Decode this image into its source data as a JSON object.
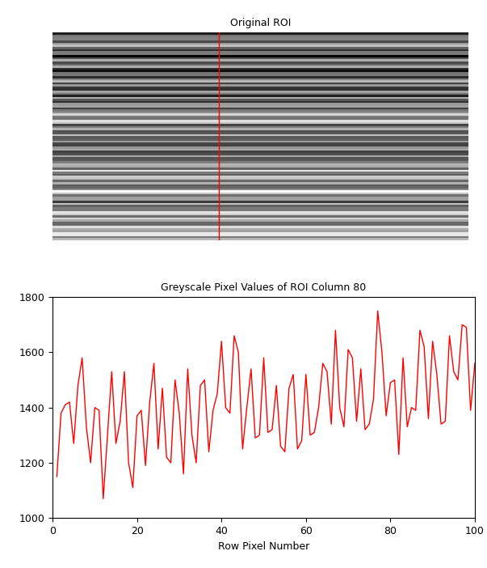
{
  "chart_data": [
    {
      "type": "image",
      "title": "Original ROI",
      "width": 200,
      "line_column": 80,
      "line_color": "#ff0000",
      "tick_labels": false
    },
    {
      "type": "line",
      "title": "Greyscale Pixel Values of ROI Column 80",
      "x_label": "Row Pixel Number",
      "x": [
        1,
        2,
        3,
        4,
        5,
        6,
        7,
        8,
        9,
        10,
        11,
        12,
        13,
        14,
        15,
        16,
        17,
        18,
        19,
        20,
        21,
        22,
        23,
        24,
        25,
        26,
        27,
        28,
        29,
        30,
        31,
        32,
        33,
        34,
        35,
        36,
        37,
        38,
        39,
        40,
        41,
        42,
        43,
        44,
        45,
        46,
        47,
        48,
        49,
        50,
        51,
        52,
        53,
        54,
        55,
        56,
        57,
        58,
        59,
        60,
        61,
        62,
        63,
        64,
        65,
        66,
        67,
        68,
        69,
        70,
        71,
        72,
        73,
        74,
        75,
        76,
        77,
        78,
        79,
        80,
        81,
        82,
        83,
        84,
        85,
        86,
        87,
        88,
        89,
        90,
        91,
        92,
        93,
        94,
        95,
        96,
        97,
        98,
        99,
        100
      ],
      "series": [
        {
          "color": "#ff0000",
          "values": [
            1150,
            1380,
            1410,
            1420,
            1270,
            1480,
            1580,
            1330,
            1200,
            1400,
            1390,
            1070,
            1300,
            1530,
            1270,
            1350,
            1530,
            1200,
            1110,
            1370,
            1390,
            1190,
            1420,
            1560,
            1250,
            1470,
            1220,
            1200,
            1500,
            1380,
            1160,
            1540,
            1300,
            1200,
            1480,
            1500,
            1240,
            1390,
            1450,
            1640,
            1400,
            1380,
            1660,
            1600,
            1250,
            1400,
            1540,
            1290,
            1300,
            1580,
            1310,
            1320,
            1480,
            1260,
            1240,
            1470,
            1520,
            1250,
            1280,
            1520,
            1300,
            1310,
            1400,
            1560,
            1530,
            1340,
            1680,
            1400,
            1330,
            1610,
            1580,
            1350,
            1540,
            1320,
            1340,
            1430,
            1750,
            1600,
            1370,
            1490,
            1500,
            1230,
            1580,
            1330,
            1400,
            1390,
            1680,
            1620,
            1360,
            1640,
            1520,
            1340,
            1350,
            1660,
            1530,
            1500,
            1700,
            1690,
            1390,
            1560
          ]
        }
      ],
      "xlim": [
        0,
        100
      ],
      "xticks": [
        0,
        20,
        40,
        60,
        80,
        100
      ],
      "ylim": [
        1000,
        1800
      ],
      "yticks": [
        1000,
        1200,
        1400,
        1600,
        1800
      ],
      "grid": false
    }
  ]
}
